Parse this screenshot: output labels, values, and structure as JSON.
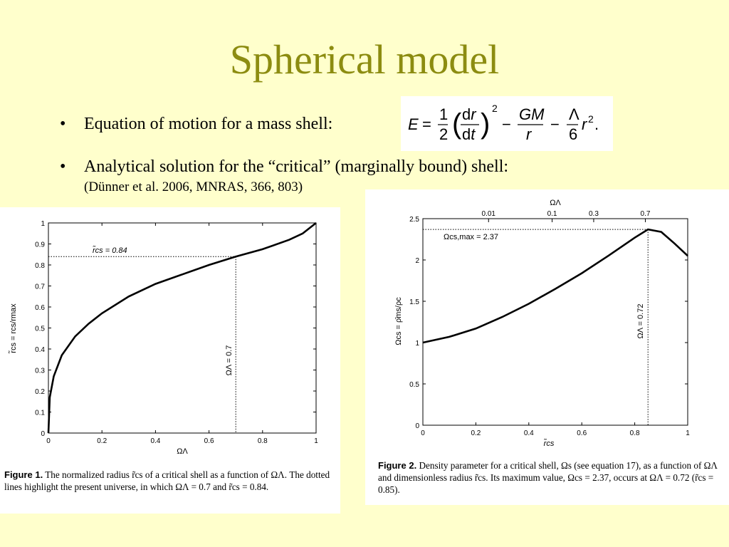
{
  "slide": {
    "title": "Spherical model",
    "bullets": [
      {
        "marker": "•",
        "text": "Equation of motion for a mass shell:"
      },
      {
        "marker": "•",
        "text": "Analytical solution for the “critical” (marginally bound) shell:"
      }
    ],
    "citation": "(Dünner et al. 2006, MNRAS, 366, 803)",
    "equation": "E = 1/2 (dr/dt)^2 − GM/r − Λ/6 r^2."
  },
  "figure1": {
    "caption_label": "Figure 1.",
    "caption_text": "The normalized radius r̃cs of a critical shell as a function of ΩΛ. The dotted lines highlight the present universe, in which ΩΛ = 0.7 and r̃cs = 0.84.",
    "annotations": [
      "r̃cs = 0.84",
      "ΩΛ = 0.7"
    ],
    "xlabel": "ΩΛ",
    "ylabel": "r̃cs = rcs/rmax",
    "xticks": [
      "0",
      "0.2",
      "0.4",
      "0.6",
      "0.8",
      "1"
    ],
    "yticks": [
      "0",
      "0.1",
      "0.2",
      "0.3",
      "0.4",
      "0.5",
      "0.6",
      "0.7",
      "0.8",
      "0.9",
      "1"
    ]
  },
  "figure2": {
    "caption_label": "Figure 2.",
    "caption_text": "Density parameter for a critical shell, Ωs (see equation 17), as a function of ΩΛ and dimensionless radius r̃cs. Its maximum value, Ωcs = 2.37, occurs at ΩΛ = 0.72 (r̃cs = 0.85).",
    "annotations": [
      "Ωcs,max = 2.37",
      "ΩΛ = 0.72"
    ],
    "xlabel": "r̃cs",
    "ylabel": "Ωcs = ρ̄ms/ρc",
    "top_axis_label": "ΩΛ",
    "xticks": [
      "0",
      "0.2",
      "0.4",
      "0.6",
      "0.8",
      "1"
    ],
    "yticks": [
      "0",
      "0.5",
      "1",
      "1.5",
      "2",
      "2.5"
    ],
    "top_ticks": [
      "0.01",
      "0.1",
      "0.3",
      "0.7"
    ]
  },
  "chart_data": [
    {
      "type": "line",
      "xlabel": "ΩΛ",
      "ylabel": "r̃cs = rcs/rmax",
      "xlim": [
        0,
        1
      ],
      "ylim": [
        0,
        1
      ],
      "x": [
        0,
        0.005,
        0.02,
        0.05,
        0.1,
        0.15,
        0.2,
        0.3,
        0.4,
        0.5,
        0.6,
        0.7,
        0.8,
        0.9,
        0.95,
        1.0
      ],
      "y": [
        0,
        0.17,
        0.27,
        0.37,
        0.46,
        0.52,
        0.57,
        0.65,
        0.71,
        0.755,
        0.8,
        0.84,
        0.875,
        0.92,
        0.95,
        1.0
      ],
      "grid": false
    },
    {
      "type": "line",
      "xlabel": "r̃cs",
      "ylabel": "Ωcs = ρ̄ms/ρc",
      "xlim": [
        0,
        1
      ],
      "ylim": [
        0,
        2.5
      ],
      "x": [
        0,
        0.1,
        0.2,
        0.3,
        0.4,
        0.5,
        0.6,
        0.7,
        0.8,
        0.85,
        0.9,
        0.95,
        1.0
      ],
      "y": [
        1.0,
        1.07,
        1.17,
        1.31,
        1.47,
        1.65,
        1.84,
        2.05,
        2.27,
        2.37,
        2.34,
        2.2,
        2.05
      ],
      "top_axis": {
        "label": "ΩΛ",
        "ticks": [
          0.01,
          0.1,
          0.3,
          0.7
        ],
        "positions_rcs": [
          0.248,
          0.488,
          0.645,
          0.84
        ]
      },
      "grid": false
    }
  ]
}
